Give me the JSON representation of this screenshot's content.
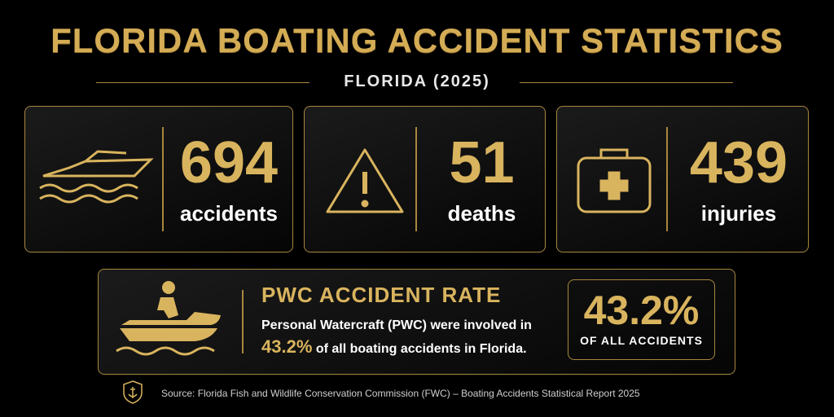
{
  "header": {
    "title": "FLORIDA BOATING ACCIDENT STATISTICS",
    "subtitle": "FLORIDA (2025)"
  },
  "stats": [
    {
      "value": 694,
      "label": "accidents"
    },
    {
      "value": 51,
      "label": "deaths"
    },
    {
      "value": 439,
      "label": "injuries"
    }
  ],
  "pwc": {
    "title": "PWC ACCIDENT RATE",
    "text_line1": "Personal Watercraft (PWC) were involved in",
    "text_highlight": "43.2%",
    "text_rest": "of all boating accidents in Florida.",
    "badge_value": "43.2%",
    "badge_label": "OF ALL ACCIDENTS"
  },
  "source": "Source: Florida Fish and Wildlife Conservation Commission (FWC) – Boating Accidents Statistical Report 2025"
}
